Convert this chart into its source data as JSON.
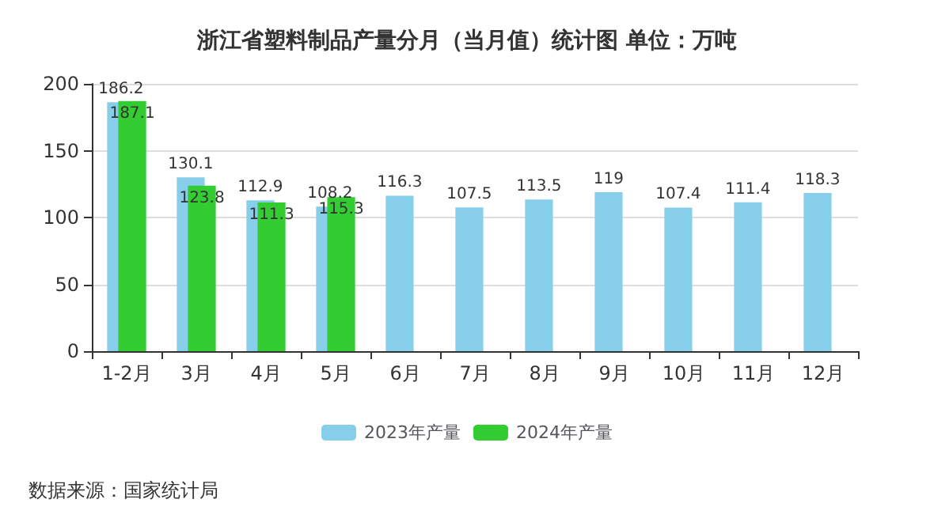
{
  "chart_data": {
    "type": "bar",
    "title": "浙江省塑料制品产量分月（当月值）统计图 单位：万吨",
    "categories": [
      "1-2月",
      "3月",
      "4月",
      "5月",
      "6月",
      "7月",
      "8月",
      "9月",
      "10月",
      "11月",
      "12月"
    ],
    "series": [
      {
        "name": "2023年产量",
        "color": "#87ceeb",
        "values": [
          186.2,
          130.1,
          112.9,
          108.2,
          116.3,
          107.5,
          113.5,
          119,
          107.4,
          111.4,
          118.3
        ]
      },
      {
        "name": "2024年产量",
        "color": "#33cc33",
        "values": [
          187.1,
          123.8,
          111.3,
          115.3,
          null,
          null,
          null,
          null,
          null,
          null,
          null
        ]
      }
    ],
    "ylim": [
      0,
      200
    ],
    "yticks": [
      0,
      50,
      100,
      150,
      200
    ],
    "grid": "y",
    "legend": "bottom",
    "data_labels": true,
    "annotations": [
      "数据来源：国家统计局"
    ]
  }
}
